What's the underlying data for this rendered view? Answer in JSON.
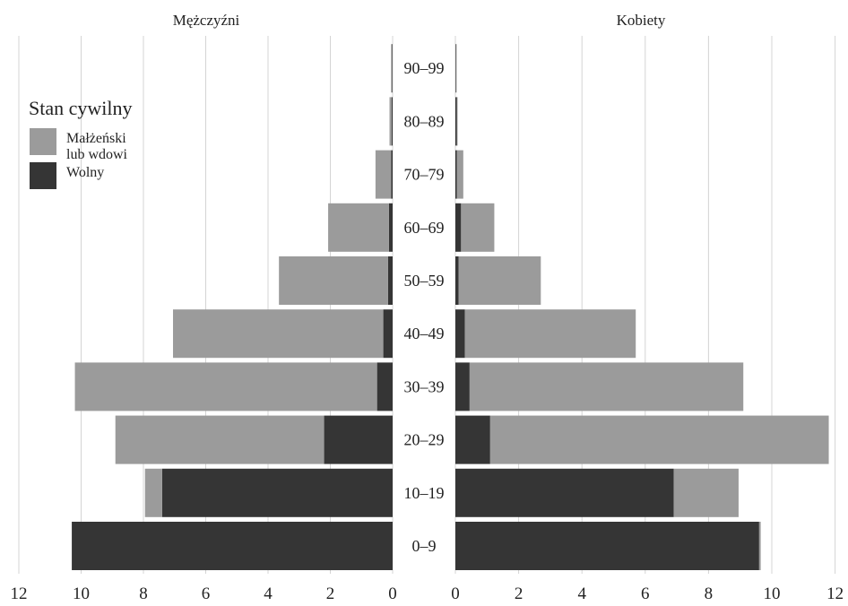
{
  "chart_data": {
    "type": "bar",
    "orientation": "horizontal",
    "layout": "population-pyramid",
    "stacked": true,
    "panels": [
      {
        "side": "left",
        "title": "Mężczyźni",
        "xlim": [
          0,
          12
        ],
        "ticks": [
          "12",
          "10",
          "8",
          "6",
          "4",
          "2",
          "0"
        ]
      },
      {
        "side": "right",
        "title": "Kobiety",
        "xlim": [
          0,
          12
        ],
        "ticks": [
          "0",
          "2",
          "4",
          "6",
          "8",
          "10",
          "12"
        ]
      }
    ],
    "categories": [
      "0–9",
      "10–19",
      "20–29",
      "30–39",
      "40–49",
      "50–59",
      "60–69",
      "70–79",
      "80–89",
      "90–99"
    ],
    "legend": {
      "title": "Stan cywilny",
      "placement": "top-left",
      "entries": [
        {
          "key": "married",
          "label_lines": [
            "Małżeński",
            "lub wdowi"
          ],
          "color": "#9b9b9b"
        },
        {
          "key": "single",
          "label_lines": [
            "Wolny"
          ],
          "color": "#353535"
        }
      ]
    },
    "series": [
      {
        "key": "single",
        "color": "#353535",
        "men": [
          10.3,
          7.4,
          2.2,
          0.5,
          0.3,
          0.15,
          0.12,
          0.05,
          0.03,
          0.02
        ],
        "women": [
          9.6,
          6.9,
          1.1,
          0.45,
          0.3,
          0.1,
          0.18,
          0.05,
          0.05,
          0.02
        ]
      },
      {
        "key": "married",
        "color": "#9b9b9b",
        "men": [
          0.0,
          0.55,
          6.7,
          9.7,
          6.75,
          3.5,
          1.95,
          0.5,
          0.07,
          0.03
        ],
        "women": [
          0.05,
          2.05,
          10.7,
          8.65,
          5.4,
          2.6,
          1.05,
          0.2,
          0.02,
          0.02
        ]
      }
    ]
  }
}
